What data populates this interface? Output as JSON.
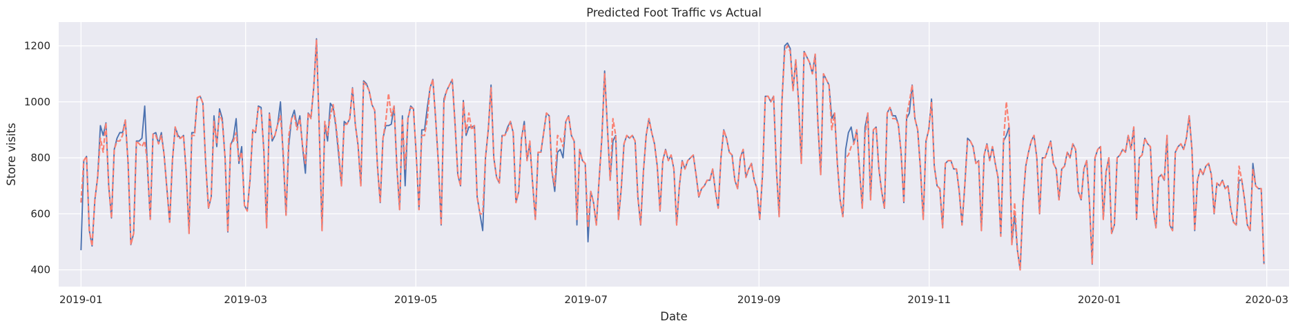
{
  "chart_data": {
    "type": "line",
    "title": "Predicted Foot Traffic vs Actual",
    "xlabel": "Date",
    "ylabel": "Store visits",
    "x_start": "2019-01-01",
    "x_end": "2020-02-29",
    "xlim": [
      "2018-12-24",
      "2020-03-09"
    ],
    "ylim": [
      340,
      1285
    ],
    "x_ticks": [
      "2019-01",
      "2019-03",
      "2019-05",
      "2019-07",
      "2019-09",
      "2019-11",
      "2020-01",
      "2020-03"
    ],
    "y_ticks": [
      400,
      600,
      800,
      1000,
      1200
    ],
    "grid": true,
    "background": "#eaeaf2",
    "series": [
      {
        "style": "solid",
        "color": "#4c72b0",
        "values": [
          470,
          790,
          805,
          540,
          485,
          650,
          730,
          915,
          880,
          925,
          700,
          585,
          830,
          870,
          890,
          890,
          935,
          780,
          490,
          530,
          860,
          860,
          870,
          985,
          760,
          580,
          885,
          890,
          850,
          890,
          810,
          690,
          570,
          790,
          910,
          880,
          870,
          880,
          745,
          530,
          890,
          890,
          1015,
          1020,
          995,
          780,
          620,
          660,
          950,
          840,
          975,
          940,
          800,
          535,
          845,
          870,
          940,
          780,
          840,
          630,
          610,
          720,
          900,
          890,
          985,
          980,
          825,
          550,
          960,
          860,
          880,
          920,
          1000,
          800,
          595,
          845,
          940,
          970,
          910,
          950,
          835,
          745,
          960,
          945,
          1050,
          1225,
          900,
          540,
          920,
          860,
          995,
          980,
          910,
          810,
          700,
          930,
          920,
          940,
          1050,
          920,
          845,
          700,
          1075,
          1065,
          1040,
          990,
          970,
          770,
          640,
          870,
          915,
          915,
          920,
          985,
          770,
          615,
          950,
          700,
          940,
          985,
          975,
          810,
          615,
          900,
          900,
          980,
          1050,
          1080,
          940,
          780,
          560,
          1010,
          1040,
          1060,
          1080,
          925,
          740,
          700,
          1005,
          880,
          910,
          910,
          915,
          660,
          600,
          540,
          800,
          900,
          1060,
          800,
          730,
          710,
          880,
          880,
          910,
          930,
          890,
          640,
          680,
          870,
          930,
          790,
          850,
          710,
          580,
          820,
          820,
          890,
          960,
          950,
          750,
          680,
          820,
          830,
          800,
          930,
          950,
          880,
          860,
          560,
          830,
          790,
          780,
          500,
          680,
          640,
          560,
          720,
          870,
          1110,
          910,
          720,
          860,
          880,
          580,
          690,
          850,
          880,
          870,
          880,
          860,
          660,
          560,
          750,
          880,
          940,
          890,
          850,
          770,
          610,
          790,
          830,
          790,
          810,
          760,
          560,
          700,
          790,
          760,
          790,
          800,
          810,
          740,
          660,
          690,
          700,
          720,
          720,
          760,
          680,
          620,
          800,
          900,
          870,
          820,
          810,
          720,
          690,
          800,
          830,
          730,
          760,
          780,
          720,
          690,
          580,
          740,
          1020,
          1020,
          1000,
          1020,
          760,
          590,
          1000,
          1200,
          1210,
          1190,
          1040,
          1150,
          1000,
          780,
          1180,
          1160,
          1140,
          1100,
          1170,
          920,
          740,
          1100,
          1080,
          1060,
          940,
          960,
          780,
          650,
          590,
          830,
          890,
          910,
          850,
          900,
          760,
          620,
          910,
          960,
          650,
          900,
          910,
          760,
          680,
          620,
          960,
          980,
          950,
          950,
          920,
          820,
          640,
          940,
          960,
          1060,
          940,
          900,
          760,
          580,
          860,
          900,
          1010,
          770,
          700,
          690,
          550,
          780,
          790,
          790,
          760,
          760,
          680,
          560,
          700,
          870,
          860,
          840,
          780,
          790,
          540,
          810,
          850,
          790,
          840,
          780,
          730,
          520,
          860,
          880,
          910,
          490,
          600,
          470,
          400,
          640,
          770,
          820,
          860,
          880,
          800,
          600,
          800,
          800,
          830,
          860,
          780,
          760,
          650,
          760,
          770,
          820,
          800,
          850,
          830,
          680,
          650,
          760,
          790,
          640,
          420,
          800,
          830,
          840,
          580,
          750,
          800,
          530,
          560,
          800,
          810,
          830,
          820,
          880,
          830,
          910,
          580,
          800,
          810,
          870,
          850,
          840,
          620,
          550,
          730,
          740,
          720,
          880,
          560,
          540,
          820,
          840,
          850,
          830,
          870,
          950,
          830,
          540,
          720,
          760,
          740,
          770,
          780,
          740,
          600,
          710,
          700,
          720,
          690,
          700,
          620,
          570,
          560,
          720,
          720,
          650,
          560,
          540,
          780,
          700,
          690,
          690,
          420
        ]
      },
      {
        "style": "dashed",
        "color": "#fa8072",
        "values": [
          640,
          790,
          805,
          540,
          485,
          650,
          730,
          870,
          820,
          925,
          700,
          585,
          830,
          860,
          860,
          880,
          935,
          780,
          490,
          530,
          860,
          850,
          840,
          860,
          780,
          580,
          885,
          880,
          850,
          880,
          810,
          690,
          570,
          790,
          910,
          870,
          870,
          880,
          745,
          530,
          880,
          880,
          1015,
          1020,
          995,
          780,
          620,
          660,
          930,
          850,
          960,
          930,
          800,
          535,
          850,
          860,
          890,
          790,
          820,
          630,
          610,
          720,
          900,
          890,
          980,
          970,
          825,
          550,
          960,
          870,
          880,
          920,
          950,
          820,
          595,
          880,
          940,
          950,
          900,
          940,
          840,
          780,
          960,
          940,
          1050,
          1220,
          900,
          540,
          930,
          880,
          950,
          990,
          920,
          830,
          700,
          920,
          920,
          940,
          1050,
          920,
          845,
          700,
          1070,
          1060,
          1040,
          990,
          970,
          770,
          640,
          870,
          930,
          1030,
          950,
          985,
          770,
          615,
          940,
          760,
          940,
          980,
          975,
          810,
          615,
          880,
          880,
          940,
          1050,
          1080,
          940,
          780,
          560,
          1000,
          1040,
          1060,
          1080,
          920,
          740,
          700,
          1000,
          890,
          960,
          900,
          915,
          660,
          600,
          600,
          800,
          900,
          1050,
          800,
          730,
          710,
          880,
          880,
          900,
          930,
          890,
          640,
          680,
          870,
          920,
          790,
          860,
          710,
          580,
          820,
          820,
          890,
          960,
          950,
          750,
          700,
          880,
          870,
          840,
          930,
          950,
          880,
          860,
          580,
          830,
          790,
          780,
          550,
          680,
          640,
          560,
          720,
          870,
          1100,
          910,
          720,
          940,
          880,
          580,
          690,
          850,
          880,
          870,
          880,
          860,
          660,
          560,
          750,
          880,
          940,
          890,
          850,
          770,
          610,
          790,
          830,
          790,
          810,
          760,
          560,
          700,
          790,
          760,
          790,
          800,
          810,
          740,
          660,
          690,
          700,
          720,
          720,
          760,
          680,
          620,
          800,
          900,
          870,
          820,
          810,
          720,
          690,
          800,
          830,
          730,
          760,
          780,
          720,
          690,
          580,
          740,
          1020,
          1020,
          1000,
          1020,
          760,
          590,
          1000,
          1180,
          1200,
          1180,
          1040,
          1150,
          1000,
          780,
          1180,
          1160,
          1140,
          1100,
          1170,
          920,
          740,
          1100,
          1080,
          1060,
          900,
          960,
          780,
          650,
          590,
          800,
          810,
          840,
          850,
          900,
          760,
          620,
          880,
          960,
          650,
          900,
          910,
          760,
          680,
          620,
          960,
          980,
          940,
          940,
          920,
          820,
          640,
          950,
          1000,
          1060,
          940,
          900,
          760,
          580,
          860,
          900,
          1000,
          770,
          700,
          690,
          550,
          780,
          790,
          790,
          760,
          760,
          680,
          560,
          700,
          860,
          860,
          840,
          780,
          790,
          540,
          810,
          850,
          790,
          840,
          780,
          730,
          520,
          860,
          1000,
          910,
          490,
          640,
          470,
          400,
          640,
          770,
          820,
          860,
          880,
          800,
          600,
          800,
          800,
          830,
          860,
          780,
          760,
          650,
          760,
          770,
          820,
          800,
          850,
          830,
          680,
          650,
          760,
          790,
          640,
          420,
          800,
          830,
          840,
          580,
          750,
          800,
          530,
          560,
          800,
          810,
          830,
          820,
          880,
          830,
          910,
          580,
          800,
          810,
          870,
          850,
          840,
          620,
          550,
          730,
          740,
          720,
          880,
          560,
          540,
          820,
          840,
          850,
          830,
          870,
          950,
          830,
          540,
          720,
          760,
          740,
          770,
          780,
          740,
          600,
          710,
          700,
          720,
          690,
          700,
          620,
          570,
          560,
          770,
          720,
          650,
          560,
          540,
          760,
          700,
          690,
          690,
          420
        ]
      }
    ]
  }
}
